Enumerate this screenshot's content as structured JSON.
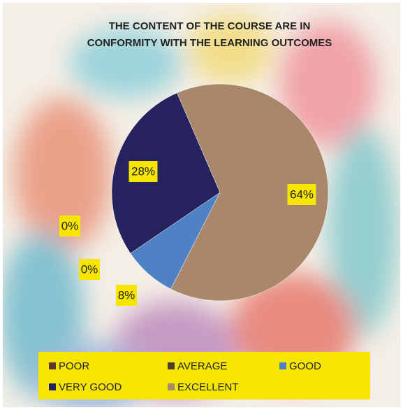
{
  "chart_data": {
    "type": "pie",
    "title": [
      "THE CONTENT OF THE COURSE ARE IN",
      "CONFORMITY WITH THE LEARNING OUTCOMES"
    ],
    "categories": [
      "POOR",
      "AVERAGE",
      "GOOD",
      "VERY GOOD",
      "EXCELLENT"
    ],
    "values": [
      0,
      0,
      8,
      28,
      64
    ],
    "value_labels": [
      "0%",
      "0%",
      "8%",
      "28%",
      "64%"
    ],
    "colors": [
      "#5b3b2c",
      "#4e3a30",
      "#4f82c4",
      "#25225e",
      "#a8876b"
    ],
    "legend": "bottom"
  }
}
